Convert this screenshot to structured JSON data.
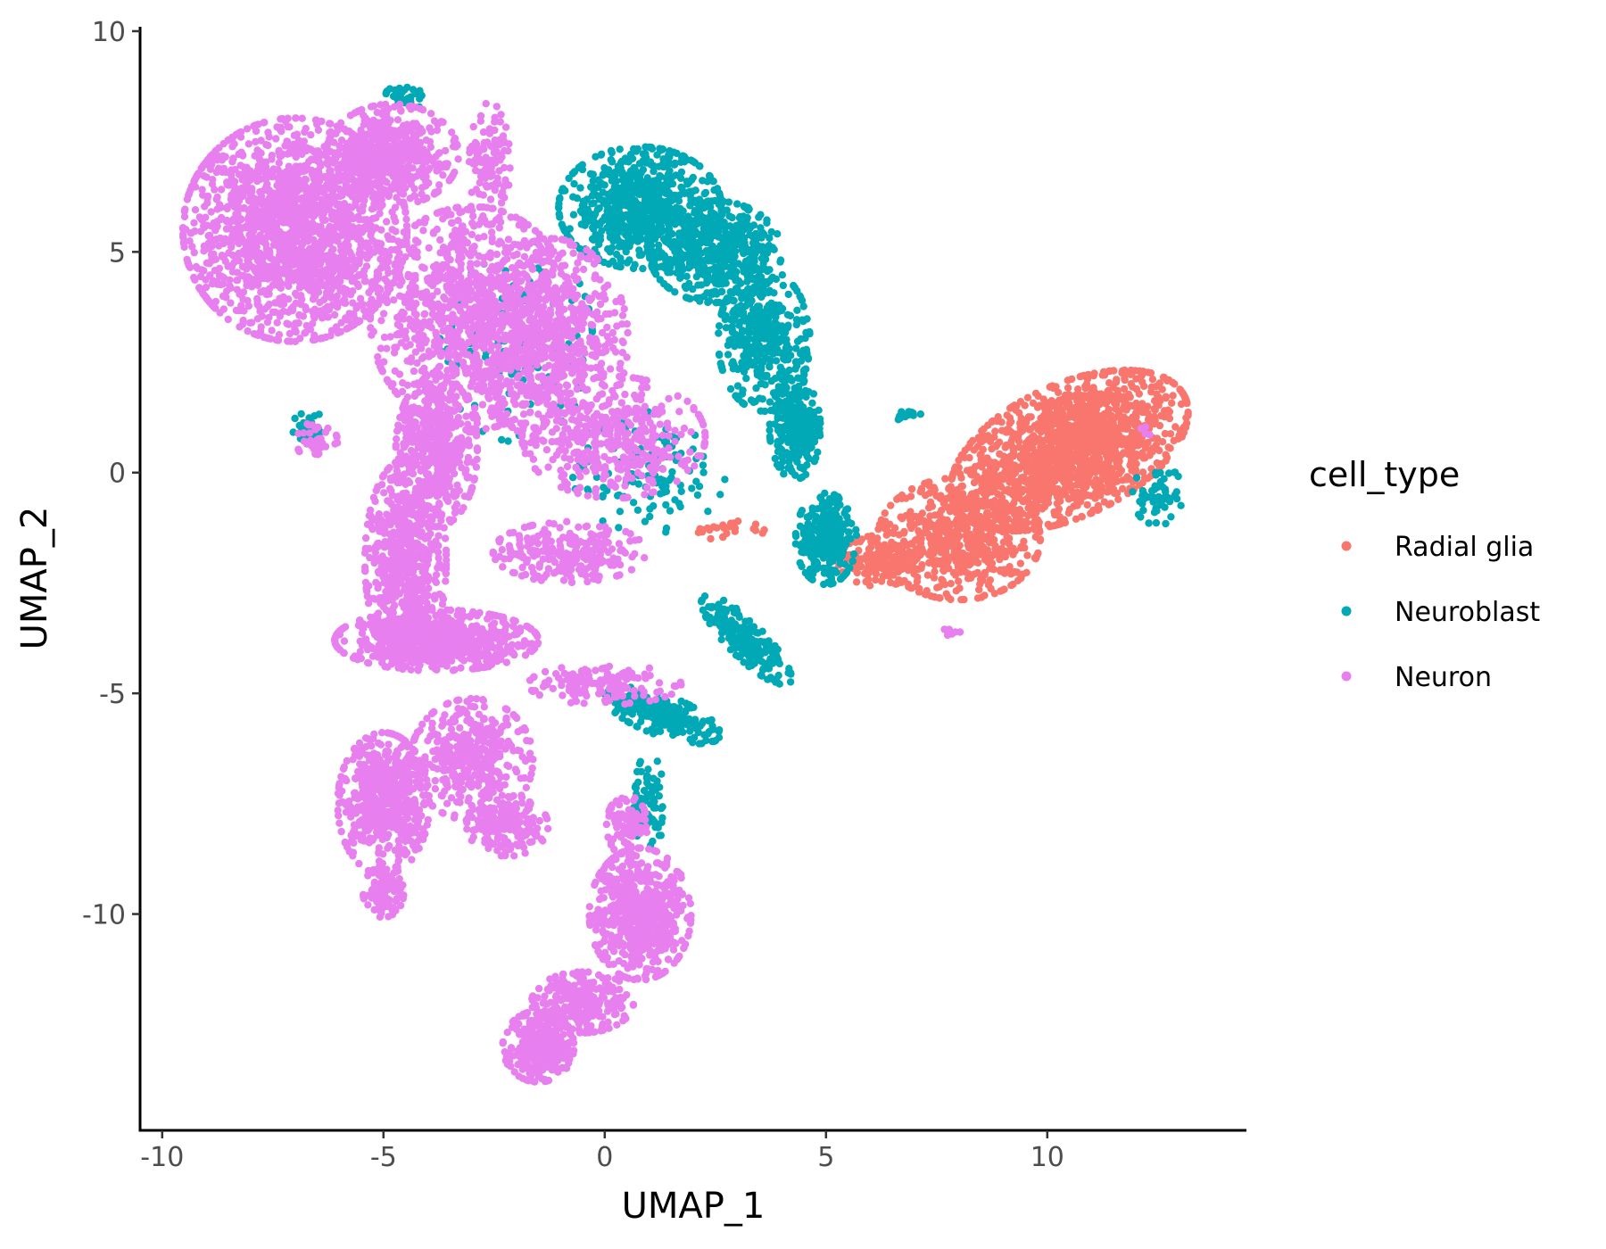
{
  "chart_data": {
    "type": "scatter",
    "xlabel": "UMAP_1",
    "ylabel": "UMAP_2",
    "xlim": [
      -10.5,
      14.5
    ],
    "ylim": [
      -14.9,
      10.1
    ],
    "x_ticks": [
      -10,
      -5,
      0,
      5,
      10
    ],
    "x_tick_labels": [
      "-10",
      "-5",
      "0",
      "5",
      "10"
    ],
    "y_ticks": [
      -10,
      -5,
      0,
      5,
      10
    ],
    "y_tick_labels": [
      "-10",
      "-5",
      "0",
      "5",
      "10"
    ],
    "grid": false,
    "legend": {
      "title": "cell_type",
      "placement": "right"
    },
    "series": [
      {
        "name": "Radial glia",
        "color": "#F8766D",
        "clusters": [
          {
            "cx": 10.5,
            "cy": 0.5,
            "rx": 2.5,
            "ry": 1.3,
            "n": 1500,
            "angle": 25
          },
          {
            "cx": 8.0,
            "cy": -1.5,
            "rx": 1.6,
            "ry": 1.2,
            "n": 600,
            "angle": 0
          },
          {
            "cx": 6.2,
            "cy": -2.0,
            "rx": 0.8,
            "ry": 0.5,
            "n": 120,
            "angle": 0
          },
          {
            "cx": 2.8,
            "cy": -1.3,
            "rx": 0.7,
            "ry": 0.2,
            "n": 25,
            "angle": 0
          }
        ]
      },
      {
        "name": "Neuroblast",
        "color": "#00A9B5",
        "clusters": [
          {
            "cx": 0.8,
            "cy": 6.0,
            "rx": 1.6,
            "ry": 1.2,
            "n": 700,
            "angle": 0
          },
          {
            "cx": 2.5,
            "cy": 5.0,
            "rx": 1.3,
            "ry": 1.0,
            "n": 500,
            "angle": 0
          },
          {
            "cx": 3.6,
            "cy": 3.0,
            "rx": 0.9,
            "ry": 1.4,
            "n": 400,
            "angle": 0
          },
          {
            "cx": 4.3,
            "cy": 1.0,
            "rx": 0.5,
            "ry": 1.0,
            "n": 250,
            "angle": 0
          },
          {
            "cx": 5.0,
            "cy": -1.5,
            "rx": 0.6,
            "ry": 0.9,
            "n": 250,
            "angle": 0
          },
          {
            "cx": 3.2,
            "cy": -3.8,
            "rx": 1.2,
            "ry": 0.35,
            "n": 200,
            "angle": -45
          },
          {
            "cx": 1.3,
            "cy": -5.5,
            "rx": 1.2,
            "ry": 0.4,
            "n": 200,
            "angle": -20
          },
          {
            "cx": 1.0,
            "cy": -7.5,
            "rx": 0.3,
            "ry": 1.0,
            "n": 80,
            "angle": 0
          },
          {
            "cx": 12.5,
            "cy": -0.5,
            "rx": 0.5,
            "ry": 0.6,
            "n": 60,
            "angle": 0
          },
          {
            "cx": -6.7,
            "cy": 1.0,
            "rx": 0.3,
            "ry": 0.4,
            "n": 30,
            "angle": 0
          },
          {
            "cx": -4.5,
            "cy": 8.5,
            "rx": 0.4,
            "ry": 0.3,
            "n": 30,
            "angle": 0
          },
          {
            "cx": 1.0,
            "cy": 0.0,
            "rx": 1.5,
            "ry": 1.2,
            "n": 120,
            "angle": 0
          },
          {
            "cx": -2.0,
            "cy": 3.0,
            "rx": 1.5,
            "ry": 2.0,
            "n": 120,
            "angle": 0
          },
          {
            "cx": 6.8,
            "cy": 1.3,
            "rx": 0.3,
            "ry": 0.1,
            "n": 15,
            "angle": 0
          }
        ]
      },
      {
        "name": "Neuron",
        "color": "#E87FEF",
        "clusters": [
          {
            "cx": -7.0,
            "cy": 5.5,
            "rx": 2.2,
            "ry": 2.2,
            "n": 1800,
            "angle": 0
          },
          {
            "cx": -4.8,
            "cy": 7.2,
            "rx": 1.3,
            "ry": 1.0,
            "n": 500,
            "angle": 0
          },
          {
            "cx": -3.0,
            "cy": 3.5,
            "rx": 2.0,
            "ry": 2.2,
            "n": 1000,
            "angle": 0
          },
          {
            "cx": -1.2,
            "cy": 3.0,
            "rx": 1.5,
            "ry": 2.0,
            "n": 600,
            "angle": 0
          },
          {
            "cx": -2.6,
            "cy": 7.0,
            "rx": 0.4,
            "ry": 1.2,
            "n": 120,
            "angle": 0
          },
          {
            "cx": -3.8,
            "cy": 0.5,
            "rx": 0.8,
            "ry": 1.5,
            "n": 500,
            "angle": 0
          },
          {
            "cx": 0.2,
            "cy": 0.8,
            "rx": 1.8,
            "ry": 1.2,
            "n": 400,
            "angle": 0
          },
          {
            "cx": -4.5,
            "cy": -2.0,
            "rx": 0.8,
            "ry": 2.0,
            "n": 600,
            "angle": 0
          },
          {
            "cx": -3.8,
            "cy": -3.8,
            "rx": 2.0,
            "ry": 0.6,
            "n": 700,
            "angle": 0
          },
          {
            "cx": -0.8,
            "cy": -1.8,
            "rx": 1.5,
            "ry": 0.6,
            "n": 250,
            "angle": 0
          },
          {
            "cx": 0.0,
            "cy": -4.8,
            "rx": 1.5,
            "ry": 0.4,
            "n": 150,
            "angle": 0
          },
          {
            "cx": -5.0,
            "cy": -7.5,
            "rx": 0.9,
            "ry": 1.4,
            "n": 600,
            "angle": 0
          },
          {
            "cx": -3.0,
            "cy": -6.5,
            "rx": 1.2,
            "ry": 1.2,
            "n": 400,
            "angle": 0
          },
          {
            "cx": -2.2,
            "cy": -8.0,
            "rx": 0.8,
            "ry": 0.6,
            "n": 200,
            "angle": 0
          },
          {
            "cx": -5.0,
            "cy": -9.5,
            "rx": 0.4,
            "ry": 0.5,
            "n": 120,
            "angle": 0
          },
          {
            "cx": 0.8,
            "cy": -10.0,
            "rx": 1.0,
            "ry": 1.3,
            "n": 600,
            "angle": 0
          },
          {
            "cx": -0.5,
            "cy": -12.0,
            "rx": 1.0,
            "ry": 0.6,
            "n": 250,
            "angle": 0
          },
          {
            "cx": -1.5,
            "cy": -13.0,
            "rx": 0.7,
            "ry": 0.7,
            "n": 300,
            "angle": 0
          },
          {
            "cx": 0.5,
            "cy": -8.0,
            "rx": 0.4,
            "ry": 0.6,
            "n": 80,
            "angle": 0
          },
          {
            "cx": -6.5,
            "cy": 0.7,
            "rx": 0.4,
            "ry": 0.4,
            "n": 40,
            "angle": 0
          },
          {
            "cx": 7.8,
            "cy": -3.6,
            "rx": 0.2,
            "ry": 0.1,
            "n": 6,
            "angle": 0
          },
          {
            "cx": 12.3,
            "cy": 0.9,
            "rx": 0.2,
            "ry": 0.2,
            "n": 5,
            "angle": 0
          }
        ]
      }
    ]
  }
}
